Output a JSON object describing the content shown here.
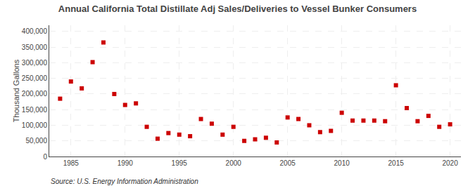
{
  "chart_data": {
    "type": "scatter",
    "title": "Annual California Total Distillate Adj Sales/Deliveries to Vessel Bunker Consumers",
    "ylabel": "Thousand Gallons",
    "annotations": [
      "Source: U.S. Energy Information Administration"
    ],
    "color": "#cc0000",
    "marker": "square",
    "grid": true,
    "x": [
      1984,
      1985,
      1986,
      1987,
      1988,
      1989,
      1990,
      1991,
      1992,
      1993,
      1994,
      1995,
      1996,
      1997,
      1998,
      1999,
      2000,
      2001,
      2002,
      2003,
      2004,
      2005,
      2006,
      2007,
      2008,
      2009,
      2010,
      2011,
      2012,
      2013,
      2014,
      2015,
      2016,
      2017,
      2018,
      2019,
      2020
    ],
    "values": [
      185000,
      240000,
      218000,
      302000,
      365000,
      200000,
      165000,
      170000,
      95000,
      57000,
      75000,
      70000,
      65000,
      120000,
      105000,
      70000,
      95000,
      50000,
      55000,
      60000,
      45000,
      125000,
      120000,
      100000,
      78000,
      82000,
      140000,
      115000,
      115000,
      115000,
      113000,
      228000,
      155000,
      113000,
      130000,
      95000,
      103000
    ],
    "xlim": [
      1983,
      2021
    ],
    "ylim": [
      0,
      420000
    ],
    "xticks": [
      1985,
      1990,
      1995,
      2000,
      2005,
      2010,
      2015,
      2020
    ],
    "yticks": [
      0,
      {
        "value": 50000,
        "label": "50,000"
      },
      {
        "value": 100000,
        "label": "100,000"
      },
      {
        "value": 150000,
        "label": "150,000"
      },
      {
        "value": 200000,
        "label": "200,000"
      },
      {
        "value": 250000,
        "label": "250,000"
      },
      {
        "value": 300000,
        "label": "300,000"
      },
      {
        "value": 350000,
        "label": "350,000"
      },
      {
        "value": 400000,
        "label": "400,000"
      }
    ]
  }
}
